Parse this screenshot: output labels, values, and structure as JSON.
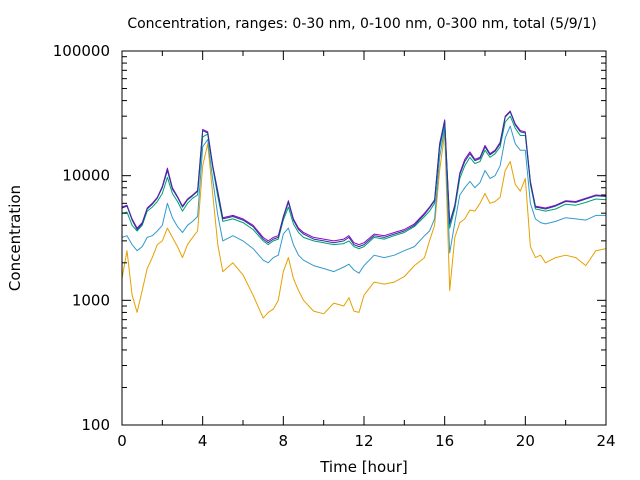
{
  "chart_data": {
    "type": "line",
    "title": "Concentration, ranges: 0-30 nm, 0-100 nm, 0-300 nm, total (5/9/1)",
    "xlabel": "Time [hour]",
    "ylabel": "Concentration",
    "xlim": [
      0,
      24
    ],
    "ylim": [
      100,
      100000
    ],
    "y_scale": "log",
    "grid": false,
    "x_ticks": [
      0,
      4,
      8,
      12,
      16,
      20,
      24
    ],
    "x_tick_labels": [
      "0",
      "4",
      "8",
      "12",
      "16",
      "20",
      "24"
    ],
    "y_ticks": [
      100,
      1000,
      10000,
      100000
    ],
    "y_tick_labels": [
      "100",
      "1000",
      "10000",
      "100000"
    ],
    "x": [
      0,
      0.25,
      0.5,
      0.75,
      1,
      1.25,
      1.5,
      1.75,
      2,
      2.25,
      2.5,
      2.75,
      3,
      3.25,
      3.5,
      3.75,
      4,
      4.25,
      4.5,
      4.75,
      5,
      5.5,
      6,
      6.5,
      7,
      7.25,
      7.5,
      7.75,
      8,
      8.25,
      8.5,
      8.75,
      9,
      9.5,
      10,
      10.5,
      11,
      11.25,
      11.5,
      11.75,
      12,
      12.5,
      13,
      13.5,
      14,
      14.5,
      15,
      15.25,
      15.5,
      15.75,
      16,
      16.25,
      16.5,
      16.75,
      17,
      17.25,
      17.5,
      17.75,
      18,
      18.25,
      18.5,
      18.75,
      19,
      19.25,
      19.5,
      19.75,
      20,
      20.25,
      20.5,
      20.75,
      21,
      21.5,
      22,
      22.5,
      23,
      23.5,
      24
    ],
    "series": [
      {
        "color": "#e6a000",
        "values": [
          1500,
          2500,
          1100,
          800,
          1200,
          1800,
          2200,
          2800,
          3000,
          3800,
          3200,
          2700,
          2200,
          2800,
          3200,
          3600,
          12000,
          18000,
          7000,
          2800,
          1700,
          2000,
          1600,
          1100,
          720,
          800,
          850,
          1000,
          1700,
          2200,
          1500,
          1200,
          1000,
          820,
          780,
          950,
          900,
          1050,
          820,
          800,
          1100,
          1400,
          1350,
          1400,
          1550,
          1900,
          2200,
          3000,
          4000,
          11000,
          22000,
          1200,
          3200,
          4200,
          4500,
          5300,
          5200,
          6000,
          7200,
          6000,
          6200,
          6700,
          11000,
          13000,
          8500,
          7500,
          9500,
          2700,
          2200,
          2300,
          2000,
          2200,
          2300,
          2200,
          1900,
          2500,
          2600
        ]
      },
      {
        "color": "#3399cc",
        "values": [
          3200,
          3300,
          2800,
          2500,
          2700,
          3200,
          3300,
          3600,
          4000,
          6000,
          4600,
          3900,
          3500,
          4000,
          4300,
          4700,
          17000,
          19500,
          9200,
          4800,
          3000,
          3300,
          3000,
          2600,
          2100,
          2000,
          2200,
          2300,
          3400,
          3800,
          2800,
          2300,
          2100,
          1900,
          1800,
          1700,
          1850,
          1950,
          1750,
          1650,
          1900,
          2300,
          2200,
          2300,
          2500,
          2700,
          3300,
          3600,
          4500,
          14000,
          24000,
          2400,
          4200,
          7000,
          8000,
          9000,
          8000,
          8800,
          11000,
          9500,
          10000,
          12000,
          20000,
          25000,
          18000,
          16000,
          16000,
          6000,
          4500,
          4200,
          4100,
          4300,
          4600,
          4500,
          4400,
          4800,
          4800
        ]
      },
      {
        "color": "#009e73",
        "values": [
          5000,
          5100,
          4000,
          3600,
          4000,
          5200,
          5600,
          6200,
          7200,
          9700,
          7200,
          6200,
          5200,
          6000,
          6600,
          7000,
          20500,
          21500,
          11500,
          6800,
          4300,
          4500,
          4200,
          3700,
          3000,
          2800,
          3000,
          3100,
          4400,
          5600,
          4100,
          3500,
          3200,
          3000,
          2900,
          2800,
          2850,
          3000,
          2700,
          2600,
          2700,
          3200,
          3100,
          3300,
          3500,
          3900,
          4700,
          5200,
          6000,
          16500,
          26000,
          3800,
          5400,
          9500,
          12000,
          14000,
          12500,
          13000,
          16000,
          14000,
          15000,
          17000,
          27000,
          30000,
          24000,
          21000,
          21000,
          8500,
          5400,
          5300,
          5200,
          5400,
          5900,
          5800,
          6100,
          6500,
          6400
        ]
      },
      {
        "color": "#9400d3",
        "values": [
          5600,
          5800,
          4500,
          3800,
          4200,
          5500,
          6000,
          6700,
          8200,
          11500,
          8000,
          6800,
          5700,
          6500,
          7000,
          7600,
          23500,
          22500,
          12000,
          7500,
          4600,
          4800,
          4500,
          4000,
          3200,
          3000,
          3200,
          3300,
          4700,
          6300,
          4500,
          3800,
          3500,
          3200,
          3100,
          3000,
          3100,
          3300,
          2900,
          2800,
          2900,
          3400,
          3300,
          3500,
          3700,
          4100,
          5000,
          5600,
          6400,
          18000,
          28000,
          4200,
          5800,
          10500,
          13500,
          15500,
          13500,
          14000,
          17500,
          15000,
          16000,
          18500,
          30000,
          33000,
          26000,
          23000,
          22500,
          9000,
          5700,
          5600,
          5500,
          5800,
          6300,
          6200,
          6600,
          7000,
          6900
        ]
      },
      {
        "color": "#1f3f8f",
        "values": [
          5500,
          5700,
          4400,
          3700,
          4100,
          5400,
          5900,
          6600,
          8000,
          11000,
          7800,
          6700,
          5600,
          6400,
          6900,
          7500,
          23000,
          22000,
          11800,
          7300,
          4500,
          4700,
          4400,
          3900,
          3100,
          2900,
          3100,
          3200,
          4600,
          6100,
          4400,
          3700,
          3400,
          3100,
          3000,
          2900,
          3000,
          3200,
          2800,
          2700,
          2800,
          3300,
          3200,
          3400,
          3600,
          4000,
          4900,
          5500,
          6300,
          17500,
          27500,
          4100,
          5700,
          10200,
          13000,
          15000,
          13200,
          13700,
          17000,
          14700,
          15700,
          18000,
          29500,
          32500,
          25500,
          22500,
          22000,
          8800,
          5600,
          5500,
          5400,
          5700,
          6200,
          6100,
          6500,
          6900,
          6800
        ]
      }
    ]
  }
}
